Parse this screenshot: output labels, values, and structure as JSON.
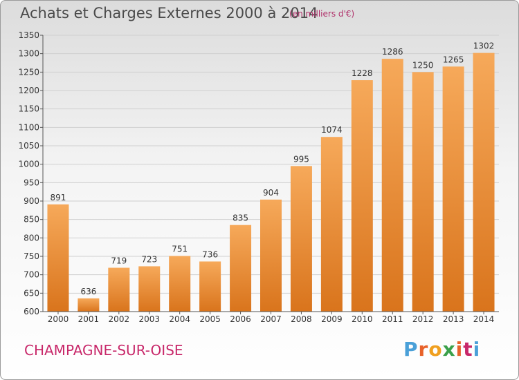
{
  "header": {
    "title": "Achats et Charges Externes 2000 à 2014",
    "subtitle": "(en milliers d'€)"
  },
  "footer": {
    "place": "CHAMPAGNE-SUR-OISE",
    "brand": "Proxiti",
    "brand_colors": [
      "#4aa0d8",
      "#e8622a",
      "#f0a020",
      "#3aa04a",
      "#e8622a",
      "#c8286a",
      "#4aa0d8"
    ]
  },
  "colors": {
    "bar_light": "#f6a95a",
    "bar_dark": "#d9741c",
    "grid": "#cfcfcf",
    "axis": "#555555"
  },
  "chart_data": {
    "type": "bar",
    "categories": [
      "2000",
      "2001",
      "2002",
      "2003",
      "2004",
      "2005",
      "2006",
      "2007",
      "2008",
      "2009",
      "2010",
      "2011",
      "2012",
      "2013",
      "2014"
    ],
    "values": [
      891,
      636,
      719,
      723,
      751,
      736,
      835,
      904,
      995,
      1074,
      1228,
      1286,
      1250,
      1265,
      1302
    ],
    "title": "Achats et Charges Externes 2000 à 2014",
    "ylim": [
      600,
      1350
    ],
    "yticks": [
      600,
      650,
      700,
      750,
      800,
      850,
      900,
      950,
      1000,
      1050,
      1100,
      1150,
      1200,
      1250,
      1300,
      1350
    ],
    "grid": true,
    "data_labels": true
  }
}
